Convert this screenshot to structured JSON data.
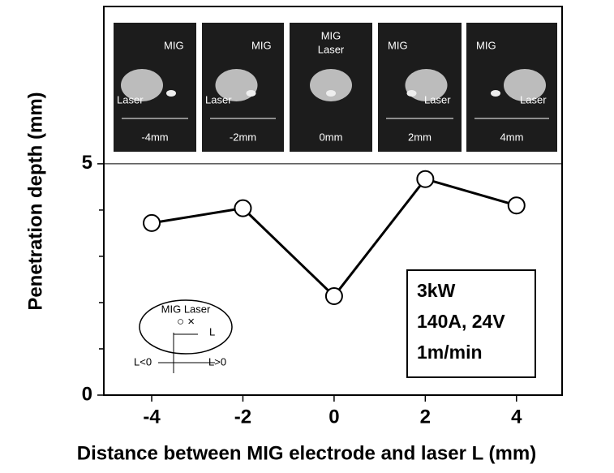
{
  "chart_data": {
    "type": "line",
    "xlabel": "Distance between MIG electrode and laser L (mm)",
    "ylabel": "Penetration depth (mm)",
    "x": [
      -4,
      -2,
      0,
      2,
      4
    ],
    "series": [
      {
        "color": "#000000",
        "values": [
          3.72,
          4.04,
          2.14,
          4.67,
          4.1
        ]
      }
    ],
    "xlim": [
      -5.05,
      5.0
    ],
    "ylim": [
      0,
      8.4
    ],
    "xticks": [
      -4,
      -2,
      0,
      2,
      4
    ],
    "yticks": [
      0,
      5
    ],
    "yminor_ticks": [
      1,
      2,
      3,
      4
    ],
    "conditions": [
      "3kW",
      "140A, 24V",
      "1m/min"
    ],
    "inset": {
      "top": "MIG Laser",
      "symbols": "○ ×",
      "l": "L",
      "left": "L<0",
      "right": "L>0"
    },
    "panels": [
      {
        "mig": "MIG",
        "laser": "Laser",
        "distance": "-4mm"
      },
      {
        "mig": "MIG",
        "laser": "Laser",
        "distance": "-2mm"
      },
      {
        "mig": "MIG",
        "laser": "Laser",
        "distance": "0mm"
      },
      {
        "mig": "MIG",
        "laser": "Laser",
        "distance": "2mm"
      },
      {
        "mig": "MIG",
        "laser": "Laser",
        "distance": "4mm"
      }
    ]
  }
}
